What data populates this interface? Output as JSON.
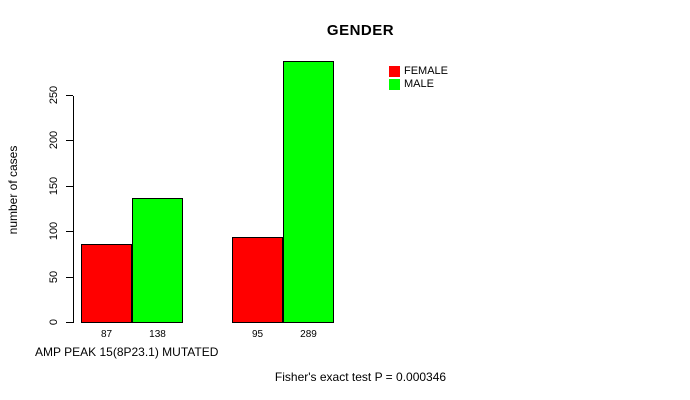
{
  "chart_data": {
    "type": "bar",
    "title": "GENDER",
    "ylabel": "number of cases",
    "xlabel": "AMP PEAK 15(8P23.1) MUTATED",
    "annotation": "Fisher's exact test P = 0.000346",
    "groups": 2,
    "series": [
      {
        "name": "FEMALE",
        "color": "#ff0000",
        "values": [
          87,
          95
        ]
      },
      {
        "name": "MALE",
        "color": "#00ff00",
        "values": [
          138,
          289
        ]
      }
    ],
    "bar_value_labels": [
      "87",
      "138",
      "95",
      "289"
    ],
    "y_ticks": [
      0,
      50,
      100,
      150,
      200,
      250
    ],
    "ylim": [
      0,
      290
    ],
    "legend": {
      "position": "top-right",
      "entries": [
        "FEMALE",
        "MALE"
      ]
    },
    "grid": false,
    "colors": {
      "bar_border": "#000000",
      "text": "#000000",
      "background": "#ffffff"
    }
  }
}
